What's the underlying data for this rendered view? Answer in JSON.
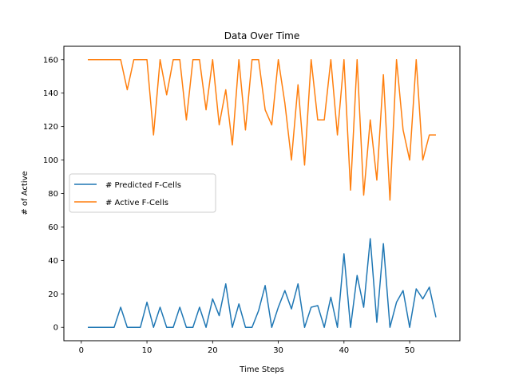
{
  "chart_data": {
    "type": "line",
    "title": "Data Over Time",
    "xlabel": "Time Steps",
    "ylabel": "# of Active",
    "xlim": [
      -2.65,
      57.65
    ],
    "ylim": [
      -8,
      168
    ],
    "xticks": [
      0,
      10,
      20,
      30,
      40,
      50
    ],
    "yticks": [
      0,
      20,
      40,
      60,
      80,
      100,
      120,
      140,
      160
    ],
    "legend_position": "center-left",
    "grid": false,
    "x": [
      1,
      2,
      3,
      4,
      5,
      6,
      7,
      8,
      9,
      10,
      11,
      12,
      13,
      14,
      15,
      16,
      17,
      18,
      19,
      20,
      21,
      22,
      23,
      24,
      25,
      26,
      27,
      28,
      29,
      30,
      31,
      32,
      33,
      34,
      35,
      36,
      37,
      38,
      39,
      40,
      41,
      42,
      43,
      44,
      45,
      46,
      47,
      48,
      49,
      50,
      51,
      52,
      53,
      54
    ],
    "series": [
      {
        "name": "# Predicted F-Cells",
        "color": "#1f77b4",
        "values": [
          0,
          0,
          0,
          0,
          0,
          12,
          0,
          0,
          0,
          15,
          0,
          12,
          0,
          0,
          12,
          0,
          0,
          12,
          0,
          17,
          7,
          26,
          0,
          14,
          0,
          0,
          10,
          25,
          0,
          12,
          22,
          11,
          26,
          0,
          12,
          13,
          0,
          18,
          0,
          44,
          0,
          31,
          12,
          53,
          3,
          50,
          0,
          15,
          22,
          0,
          23,
          17,
          24,
          6
        ]
      },
      {
        "name": "# Active F-Cells",
        "color": "#ff7f0e",
        "values": [
          160,
          160,
          160,
          160,
          160,
          160,
          142,
          160,
          160,
          160,
          115,
          160,
          139,
          160,
          160,
          124,
          160,
          160,
          130,
          160,
          121,
          142,
          109,
          160,
          118,
          160,
          160,
          130,
          121,
          160,
          134,
          100,
          145,
          97,
          160,
          124,
          124,
          160,
          115,
          160,
          82,
          160,
          79,
          124,
          88,
          151,
          76,
          160,
          118,
          100,
          160,
          100,
          115,
          115
        ]
      }
    ]
  }
}
